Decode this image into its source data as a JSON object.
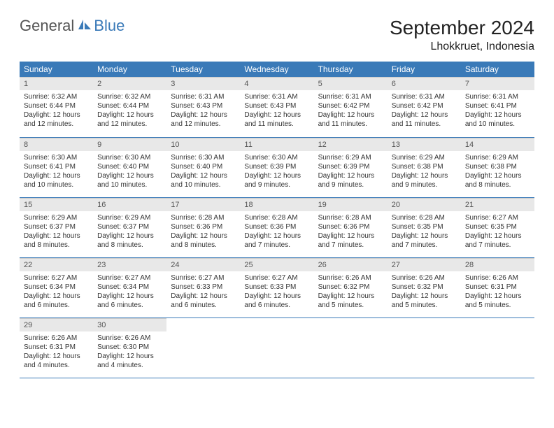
{
  "logo": {
    "text_gray": "General",
    "text_blue": "Blue"
  },
  "title": "September 2024",
  "location": "Lhokkruet, Indonesia",
  "colors": {
    "header_bg": "#3a7ab8",
    "header_fg": "#ffffff",
    "daynum_bg": "#e8e8e8",
    "row_border": "#3a7ab8"
  },
  "weekdays": [
    "Sunday",
    "Monday",
    "Tuesday",
    "Wednesday",
    "Thursday",
    "Friday",
    "Saturday"
  ],
  "weeks": [
    [
      {
        "n": "1",
        "sr": "6:32 AM",
        "ss": "6:44 PM",
        "dl": "12 hours and 12 minutes."
      },
      {
        "n": "2",
        "sr": "6:32 AM",
        "ss": "6:44 PM",
        "dl": "12 hours and 12 minutes."
      },
      {
        "n": "3",
        "sr": "6:31 AM",
        "ss": "6:43 PM",
        "dl": "12 hours and 12 minutes."
      },
      {
        "n": "4",
        "sr": "6:31 AM",
        "ss": "6:43 PM",
        "dl": "12 hours and 11 minutes."
      },
      {
        "n": "5",
        "sr": "6:31 AM",
        "ss": "6:42 PM",
        "dl": "12 hours and 11 minutes."
      },
      {
        "n": "6",
        "sr": "6:31 AM",
        "ss": "6:42 PM",
        "dl": "12 hours and 11 minutes."
      },
      {
        "n": "7",
        "sr": "6:31 AM",
        "ss": "6:41 PM",
        "dl": "12 hours and 10 minutes."
      }
    ],
    [
      {
        "n": "8",
        "sr": "6:30 AM",
        "ss": "6:41 PM",
        "dl": "12 hours and 10 minutes."
      },
      {
        "n": "9",
        "sr": "6:30 AM",
        "ss": "6:40 PM",
        "dl": "12 hours and 10 minutes."
      },
      {
        "n": "10",
        "sr": "6:30 AM",
        "ss": "6:40 PM",
        "dl": "12 hours and 10 minutes."
      },
      {
        "n": "11",
        "sr": "6:30 AM",
        "ss": "6:39 PM",
        "dl": "12 hours and 9 minutes."
      },
      {
        "n": "12",
        "sr": "6:29 AM",
        "ss": "6:39 PM",
        "dl": "12 hours and 9 minutes."
      },
      {
        "n": "13",
        "sr": "6:29 AM",
        "ss": "6:38 PM",
        "dl": "12 hours and 9 minutes."
      },
      {
        "n": "14",
        "sr": "6:29 AM",
        "ss": "6:38 PM",
        "dl": "12 hours and 8 minutes."
      }
    ],
    [
      {
        "n": "15",
        "sr": "6:29 AM",
        "ss": "6:37 PM",
        "dl": "12 hours and 8 minutes."
      },
      {
        "n": "16",
        "sr": "6:29 AM",
        "ss": "6:37 PM",
        "dl": "12 hours and 8 minutes."
      },
      {
        "n": "17",
        "sr": "6:28 AM",
        "ss": "6:36 PM",
        "dl": "12 hours and 8 minutes."
      },
      {
        "n": "18",
        "sr": "6:28 AM",
        "ss": "6:36 PM",
        "dl": "12 hours and 7 minutes."
      },
      {
        "n": "19",
        "sr": "6:28 AM",
        "ss": "6:36 PM",
        "dl": "12 hours and 7 minutes."
      },
      {
        "n": "20",
        "sr": "6:28 AM",
        "ss": "6:35 PM",
        "dl": "12 hours and 7 minutes."
      },
      {
        "n": "21",
        "sr": "6:27 AM",
        "ss": "6:35 PM",
        "dl": "12 hours and 7 minutes."
      }
    ],
    [
      {
        "n": "22",
        "sr": "6:27 AM",
        "ss": "6:34 PM",
        "dl": "12 hours and 6 minutes."
      },
      {
        "n": "23",
        "sr": "6:27 AM",
        "ss": "6:34 PM",
        "dl": "12 hours and 6 minutes."
      },
      {
        "n": "24",
        "sr": "6:27 AM",
        "ss": "6:33 PM",
        "dl": "12 hours and 6 minutes."
      },
      {
        "n": "25",
        "sr": "6:27 AM",
        "ss": "6:33 PM",
        "dl": "12 hours and 6 minutes."
      },
      {
        "n": "26",
        "sr": "6:26 AM",
        "ss": "6:32 PM",
        "dl": "12 hours and 5 minutes."
      },
      {
        "n": "27",
        "sr": "6:26 AM",
        "ss": "6:32 PM",
        "dl": "12 hours and 5 minutes."
      },
      {
        "n": "28",
        "sr": "6:26 AM",
        "ss": "6:31 PM",
        "dl": "12 hours and 5 minutes."
      }
    ],
    [
      {
        "n": "29",
        "sr": "6:26 AM",
        "ss": "6:31 PM",
        "dl": "12 hours and 4 minutes."
      },
      {
        "n": "30",
        "sr": "6:26 AM",
        "ss": "6:30 PM",
        "dl": "12 hours and 4 minutes."
      },
      null,
      null,
      null,
      null,
      null
    ]
  ],
  "labels": {
    "sunrise": "Sunrise: ",
    "sunset": "Sunset: ",
    "daylight": "Daylight: "
  }
}
